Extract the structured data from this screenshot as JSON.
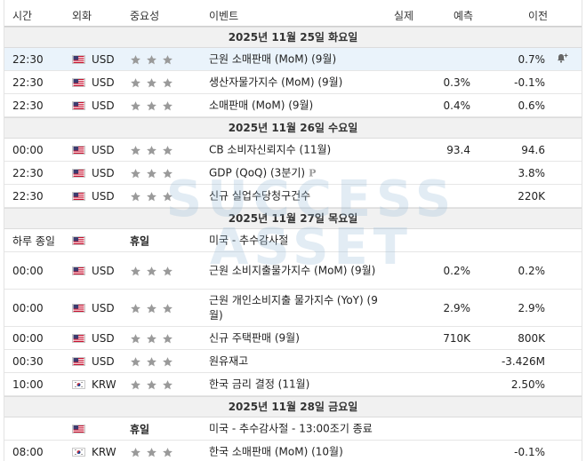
{
  "header": {
    "time": "시간",
    "currency": "외화",
    "importance": "중요성",
    "event": "이벤트",
    "actual": "실제",
    "forecast": "예측",
    "previous": "이전"
  },
  "watermark": {
    "line1": "SUCCESS",
    "line2": "ASSET"
  },
  "days": [
    {
      "date": "2025년 11월 25일 화요일",
      "rows": [
        {
          "time": "22:30",
          "flag": "us-flag-icon",
          "currency": "USD",
          "stars": 3,
          "event": "근원 소매판매 (MoM) (9월)",
          "actual": "",
          "forecast": "",
          "previous": "0.7%",
          "highlight": true,
          "bell": true
        },
        {
          "time": "22:30",
          "flag": "us-flag-icon",
          "currency": "USD",
          "stars": 3,
          "event": "생산자물가지수 (MoM) (9월)",
          "actual": "",
          "forecast": "0.3%",
          "previous": "-0.1%"
        },
        {
          "time": "22:30",
          "flag": "us-flag-icon",
          "currency": "USD",
          "stars": 3,
          "event": "소매판매 (MoM) (9월)",
          "actual": "",
          "forecast": "0.4%",
          "previous": "0.6%"
        }
      ]
    },
    {
      "date": "2025년 11월 26일 수요일",
      "rows": [
        {
          "time": "00:00",
          "flag": "us-flag-icon",
          "currency": "USD",
          "stars": 3,
          "event": "CB 소비자신뢰지수 (11월)",
          "actual": "",
          "forecast": "93.4",
          "previous": "94.6"
        },
        {
          "time": "22:30",
          "flag": "us-flag-icon",
          "currency": "USD",
          "stars": 3,
          "event": "GDP (QoQ) (3분기)",
          "prelim": "P",
          "actual": "",
          "forecast": "",
          "previous": "3.8%"
        },
        {
          "time": "22:30",
          "flag": "us-flag-icon",
          "currency": "USD",
          "stars": 3,
          "event": "신규 실업수당청구건수",
          "actual": "",
          "forecast": "",
          "previous": "220K"
        }
      ]
    },
    {
      "date": "2025년 11월 27일 목요일",
      "rows": [
        {
          "time": "하루 종일",
          "flag": "us-flag-icon",
          "currency": "",
          "holiday": "휴일",
          "event": "미국 - 추수감사절",
          "actual": "",
          "forecast": "",
          "previous": ""
        },
        {
          "time": "00:00",
          "flag": "us-flag-icon",
          "currency": "USD",
          "stars": 3,
          "event": "근원 소비지출물가지수 (MoM) (9월)",
          "actual": "",
          "forecast": "0.2%",
          "previous": "0.2%",
          "tall": true
        },
        {
          "time": "00:00",
          "flag": "us-flag-icon",
          "currency": "USD",
          "stars": 3,
          "event": "근원 개인소비지출 물가지수 (YoY) (9월)",
          "actual": "",
          "forecast": "2.9%",
          "previous": "2.9%",
          "tall": true
        },
        {
          "time": "00:00",
          "flag": "us-flag-icon",
          "currency": "USD",
          "stars": 3,
          "event": "신규 주택판매 (9월)",
          "actual": "",
          "forecast": "710K",
          "previous": "800K"
        },
        {
          "time": "00:30",
          "flag": "us-flag-icon",
          "currency": "USD",
          "stars": 3,
          "event": "원유재고",
          "actual": "",
          "forecast": "",
          "previous": "-3.426M"
        },
        {
          "time": "10:00",
          "flag": "kr-flag-icon",
          "currency": "KRW",
          "stars": 3,
          "event": "한국 금리 결정 (11월)",
          "actual": "",
          "forecast": "",
          "previous": "2.50%"
        }
      ]
    },
    {
      "date": "2025년 11월 28일 금요일",
      "rows": [
        {
          "time": "",
          "flag": "us-flag-icon",
          "currency": "",
          "holiday": "휴일",
          "event": "미국 - 추수감사절 - 13:00조기 종료",
          "actual": "",
          "forecast": "",
          "previous": ""
        },
        {
          "time": "08:00",
          "flag": "kr-flag-icon",
          "currency": "KRW",
          "stars": 3,
          "event": "한국 소매판매 (MoM) (10월)",
          "actual": "",
          "forecast": "",
          "previous": "-0.1%"
        }
      ]
    }
  ],
  "colors": {
    "star": "#9a9a9a",
    "highlight": "#eaf3fb",
    "date_bg": "#f1f1f1"
  }
}
